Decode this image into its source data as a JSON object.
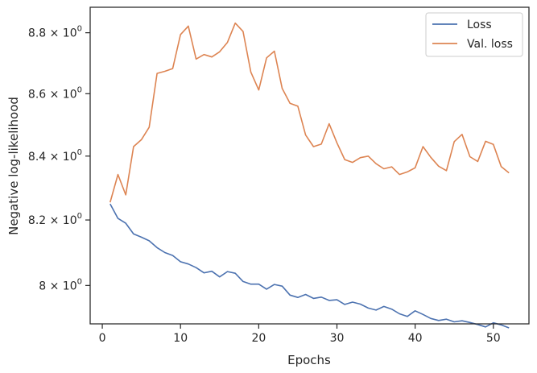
{
  "chart_data": {
    "type": "line",
    "xlabel": "Epochs",
    "ylabel": "Negative log-likelihood",
    "yscale": "log",
    "xlim": [
      -1.55,
      54.55
    ],
    "ylim": [
      7.885,
      8.885
    ],
    "x_ticks": [
      0,
      10,
      20,
      30,
      40,
      50
    ],
    "x_tick_labels": [
      "0",
      "10",
      "20",
      "30",
      "40",
      "50"
    ],
    "y_ticks": [
      8.0,
      8.2,
      8.4,
      8.6,
      8.8
    ],
    "y_tick_labels": [
      {
        "mantissa": "8",
        "base": "10",
        "exp": "0"
      },
      {
        "mantissa": "8.2",
        "base": "10",
        "exp": "0"
      },
      {
        "mantissa": "8.4",
        "base": "10",
        "exp": "0"
      },
      {
        "mantissa": "8.6",
        "base": "10",
        "exp": "0"
      },
      {
        "mantissa": "8.8",
        "base": "10",
        "exp": "0"
      }
    ],
    "legend_position": "top-right",
    "grid": false,
    "x": [
      1,
      2,
      3,
      4,
      5,
      6,
      7,
      8,
      9,
      10,
      11,
      12,
      13,
      14,
      15,
      16,
      17,
      18,
      19,
      20,
      21,
      22,
      23,
      24,
      25,
      26,
      27,
      28,
      29,
      30,
      31,
      32,
      33,
      34,
      35,
      36,
      37,
      38,
      39,
      40,
      41,
      42,
      43,
      44,
      45,
      46,
      47,
      48,
      49,
      50,
      51,
      52
    ],
    "series": [
      {
        "name": "Loss",
        "color": "#4c72b0",
        "values": [
          8.25,
          8.205,
          8.19,
          8.157,
          8.147,
          8.136,
          8.115,
          8.1,
          8.091,
          8.072,
          8.065,
          8.054,
          8.038,
          8.043,
          8.026,
          8.042,
          8.037,
          8.012,
          8.004,
          8.004,
          7.989,
          8.003,
          7.998,
          7.971,
          7.964,
          7.973,
          7.961,
          7.965,
          7.955,
          7.957,
          7.943,
          7.95,
          7.944,
          7.932,
          7.926,
          7.937,
          7.929,
          7.915,
          7.907,
          7.924,
          7.913,
          7.901,
          7.895,
          7.899,
          7.891,
          7.894,
          7.889,
          7.883,
          7.876,
          7.888,
          7.882,
          7.873
        ]
      },
      {
        "name": "Val. loss",
        "color": "#dd8452",
        "values": [
          8.255,
          8.342,
          8.278,
          8.43,
          8.452,
          8.492,
          8.666,
          8.673,
          8.682,
          8.794,
          8.822,
          8.713,
          8.728,
          8.72,
          8.737,
          8.768,
          8.832,
          8.804,
          8.67,
          8.612,
          8.717,
          8.739,
          8.617,
          8.569,
          8.56,
          8.467,
          8.43,
          8.438,
          8.503,
          8.442,
          8.389,
          8.38,
          8.395,
          8.4,
          8.376,
          8.36,
          8.366,
          8.342,
          8.35,
          8.363,
          8.43,
          8.396,
          8.368,
          8.354,
          8.446,
          8.469,
          8.398,
          8.383,
          8.447,
          8.437,
          8.367,
          8.347
        ]
      }
    ]
  }
}
